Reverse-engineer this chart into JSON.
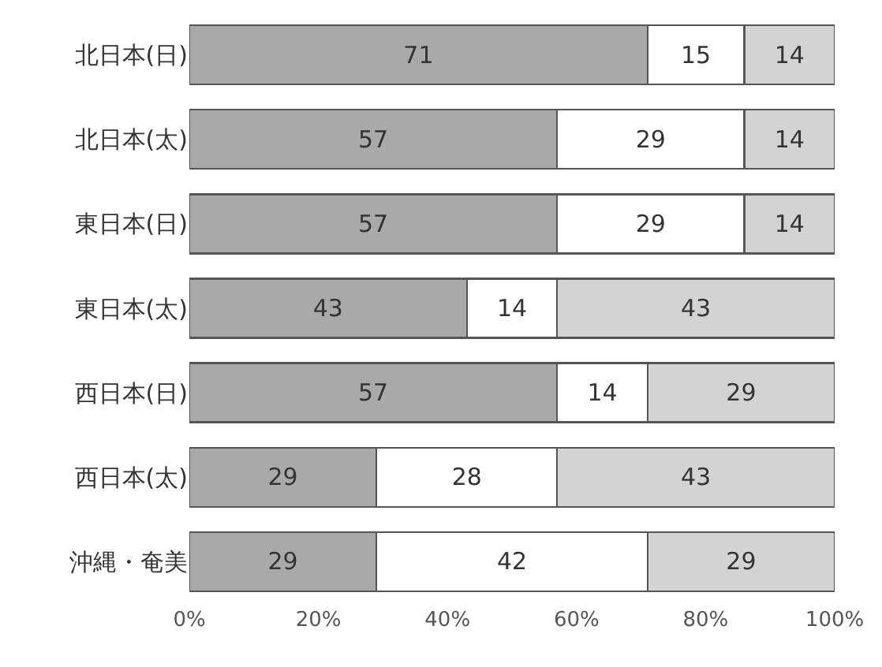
{
  "chart_data": {
    "type": "bar",
    "orientation": "horizontal",
    "stacked": true,
    "data_labels": true,
    "categories": [
      "北日本(日)",
      "北日本(太)",
      "東日本(日)",
      "東日本(太)",
      "西日本(日)",
      "西日本(太)",
      "沖縄・奄美"
    ],
    "series": [
      {
        "color": "#a9a9a9",
        "values": [
          71,
          57,
          57,
          43,
          57,
          29,
          29
        ]
      },
      {
        "color": "#ffffff",
        "values": [
          15,
          29,
          29,
          14,
          14,
          28,
          42
        ]
      },
      {
        "color": "#d3d3d3",
        "values": [
          14,
          14,
          14,
          43,
          29,
          43,
          29
        ]
      }
    ],
    "xlim": [
      0,
      100
    ],
    "xticks": [
      {
        "value": 0,
        "label": "0%"
      },
      {
        "value": 20,
        "label": "20%"
      },
      {
        "value": 40,
        "label": "40%"
      },
      {
        "value": 60,
        "label": "60%"
      },
      {
        "value": 80,
        "label": "80%"
      },
      {
        "value": 100,
        "label": "100%"
      }
    ]
  }
}
